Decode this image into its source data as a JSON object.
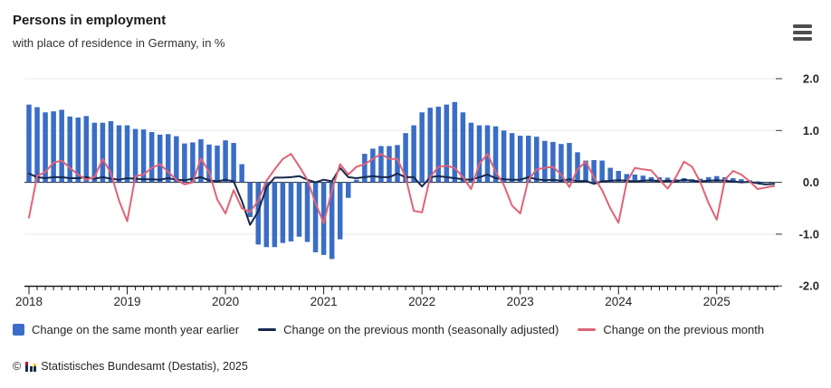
{
  "header": {
    "title": "Persons in employment",
    "subtitle": "with place of residence in Germany, in %"
  },
  "menu_icon": "hamburger-icon",
  "legend": {
    "items": [
      {
        "label": "Change on the same month year earlier",
        "swatch": "bar",
        "color": "#3a6dc5"
      },
      {
        "label": "Change on the previous month (seasonally adjusted)",
        "swatch": "line",
        "color": "#17294d"
      },
      {
        "label": "Change on the previous month",
        "swatch": "line",
        "color": "#e06377"
      }
    ]
  },
  "footer": {
    "copyright": "©",
    "source": "Statistisches Bundesamt (Destatis), 2025",
    "logo": "destatis-bars-icon"
  },
  "chart_data": {
    "type": "bar",
    "title": "Persons in employment",
    "subtitle": "with place of residence in Germany, in %",
    "unit": "%",
    "x_range": {
      "start": "2018-01",
      "end": "2025-08",
      "months": 92
    },
    "ylim": [
      -2.0,
      2.0
    ],
    "grid": true,
    "legend_position": "bottom",
    "yticks": {
      "values": [
        2.0,
        1.0,
        0.0,
        -1.0,
        -2.0
      ],
      "labels": [
        "2.0",
        "1.0",
        "0.0",
        "-1.0",
        "-2.0"
      ]
    },
    "year_ticks": [
      {
        "label": "2018",
        "month_index": 0
      },
      {
        "label": "2019",
        "month_index": 12
      },
      {
        "label": "2020",
        "month_index": 24
      },
      {
        "label": "2021",
        "month_index": 36
      },
      {
        "label": "2022",
        "month_index": 48
      },
      {
        "label": "2023",
        "month_index": 60
      },
      {
        "label": "2024",
        "month_index": 72
      },
      {
        "label": "2025",
        "month_index": 84
      }
    ],
    "series": [
      {
        "name": "Change on the same month year earlier",
        "type": "bar",
        "color": "#3a6dc5",
        "values": [
          1.5,
          1.45,
          1.35,
          1.37,
          1.4,
          1.27,
          1.25,
          1.28,
          1.15,
          1.15,
          1.18,
          1.1,
          1.1,
          1.03,
          1.02,
          0.97,
          0.92,
          0.93,
          0.89,
          0.75,
          0.77,
          0.83,
          0.73,
          0.71,
          0.81,
          0.76,
          0.35,
          -0.67,
          -1.2,
          -1.25,
          -1.25,
          -1.17,
          -1.14,
          -1.05,
          -1.15,
          -1.35,
          -1.4,
          -1.48,
          -1.1,
          -0.3,
          0.05,
          0.55,
          0.65,
          0.7,
          0.7,
          0.72,
          0.95,
          1.1,
          1.35,
          1.44,
          1.46,
          1.5,
          1.55,
          1.35,
          1.15,
          1.1,
          1.1,
          1.08,
          1.0,
          0.95,
          0.9,
          0.9,
          0.88,
          0.8,
          0.78,
          0.74,
          0.76,
          0.58,
          0.42,
          0.43,
          0.42,
          0.28,
          0.22,
          0.16,
          0.15,
          0.13,
          0.1,
          0.1,
          0.09,
          0.06,
          0.08,
          0.06,
          0.07,
          0.1,
          0.12,
          0.1,
          0.08,
          0.06,
          0.04,
          0.02,
          0.01,
          0.0
        ]
      },
      {
        "name": "Change on the previous month (seasonally adjusted)",
        "type": "line",
        "color": "#17294d",
        "values": [
          0.17,
          0.1,
          0.08,
          0.1,
          0.1,
          0.08,
          0.08,
          0.1,
          0.07,
          0.1,
          0.07,
          0.05,
          0.08,
          0.07,
          0.06,
          0.06,
          0.05,
          0.08,
          0.05,
          0.04,
          0.07,
          0.1,
          0.04,
          0.02,
          0.05,
          0.02,
          -0.36,
          -0.82,
          -0.56,
          -0.1,
          0.09,
          0.09,
          0.1,
          0.12,
          0.05,
          0.0,
          0.05,
          0.02,
          0.28,
          0.1,
          0.08,
          0.1,
          0.12,
          0.1,
          0.1,
          0.17,
          0.1,
          0.1,
          -0.08,
          0.1,
          0.12,
          0.1,
          0.08,
          0.06,
          0.05,
          0.1,
          0.15,
          0.08,
          0.06,
          0.05,
          0.05,
          0.1,
          0.06,
          0.04,
          0.05,
          0.03,
          0.06,
          0.02,
          0.03,
          -0.03,
          0.02,
          0.03,
          0.04,
          0.03,
          0.02,
          0.03,
          0.04,
          0.02,
          0.03,
          0.02,
          0.05,
          0.03,
          0.02,
          0.03,
          0.04,
          0.03,
          0.02,
          0.0,
          0.01,
          -0.02,
          -0.04,
          -0.03
        ]
      },
      {
        "name": "Change on the previous month",
        "type": "line",
        "color": "#e06377",
        "values": [
          -0.68,
          0.12,
          0.2,
          0.38,
          0.42,
          0.28,
          0.15,
          0.05,
          0.1,
          0.45,
          0.18,
          -0.35,
          -0.75,
          0.12,
          0.15,
          0.28,
          0.35,
          0.2,
          0.05,
          -0.04,
          0.0,
          0.46,
          0.2,
          -0.33,
          -0.6,
          -0.15,
          -0.5,
          -0.57,
          -0.35,
          0.03,
          0.25,
          0.45,
          0.55,
          0.31,
          0.05,
          -0.4,
          -0.79,
          -0.15,
          0.35,
          0.15,
          0.3,
          0.35,
          0.45,
          0.55,
          0.45,
          0.45,
          0.1,
          -0.55,
          -0.58,
          0.1,
          0.3,
          0.32,
          0.28,
          0.1,
          -0.13,
          0.35,
          0.55,
          0.2,
          -0.05,
          -0.45,
          -0.6,
          0.05,
          0.25,
          0.28,
          0.3,
          0.15,
          -0.09,
          0.25,
          0.4,
          0.1,
          -0.15,
          -0.5,
          -0.78,
          0.0,
          0.28,
          0.25,
          0.23,
          0.05,
          -0.12,
          0.1,
          0.4,
          0.3,
          0.0,
          -0.4,
          -0.72,
          0.05,
          0.22,
          0.15,
          0.02,
          -0.13,
          -0.1,
          -0.07
        ]
      }
    ]
  }
}
